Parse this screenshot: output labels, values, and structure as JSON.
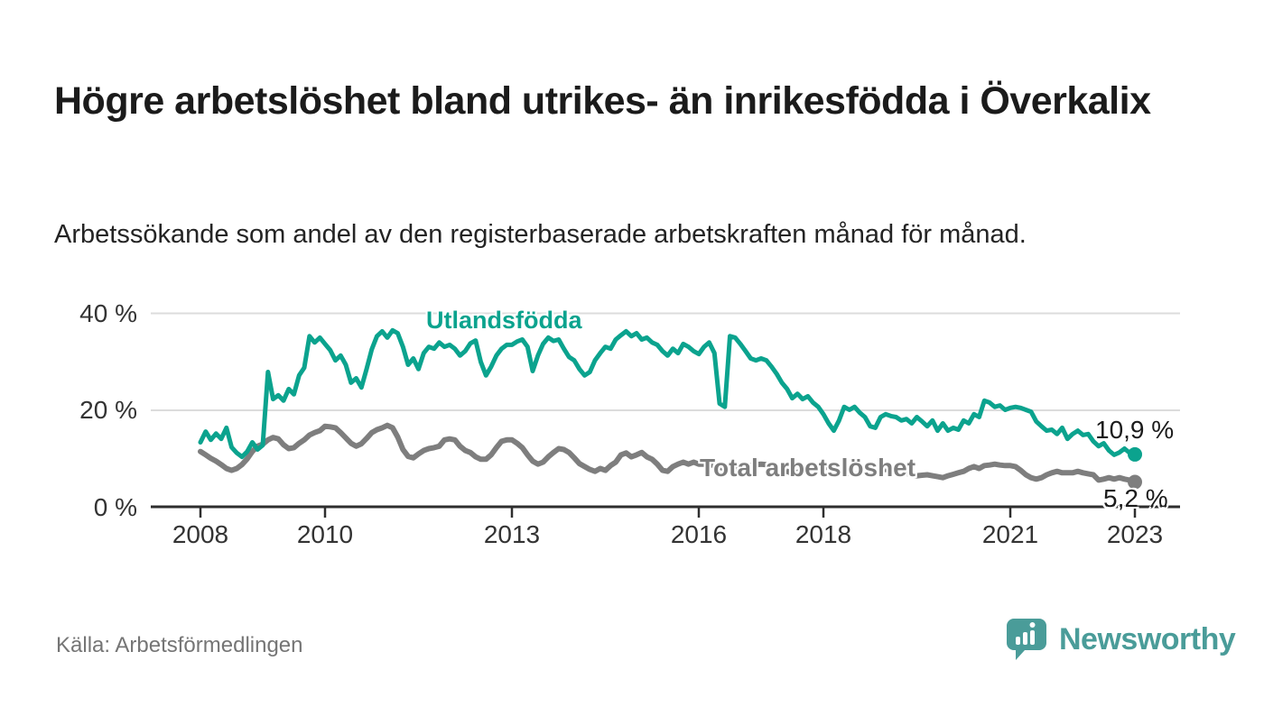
{
  "header": {
    "title": "Högre arbetslöshet bland utrikes- än inrikesfödda i Överkalix",
    "subtitle": "Arbetssökande som andel av den registerbaserade arbetskraften månad för månad."
  },
  "chart_data": {
    "type": "line",
    "title": "Högre arbetslöshet bland utrikes- än inrikesfödda i Överkalix",
    "subtitle": "Arbetssökande som andel av den registerbaserade arbetskraften månad för månad.",
    "frequency": "monthly",
    "x_start": "2008-01",
    "x_end": "2023-01",
    "ylim": [
      0,
      42
    ],
    "yticks": [
      0,
      20,
      40
    ],
    "ytick_labels": [
      "0 %",
      "20 %",
      "40 %"
    ],
    "xticks": [
      2008,
      2010,
      2013,
      2016,
      2018,
      2021,
      2023
    ],
    "xtick_labels": [
      "2008",
      "2010",
      "2013",
      "2016",
      "2018",
      "2021",
      "2023"
    ],
    "grid": "horizontal",
    "legend_position": "inline-labels",
    "series": [
      {
        "name": "Utlandsfödda",
        "color": "#0ba38e",
        "end_label": "10,9 %",
        "end_value": 10.9,
        "values": [
          13.4,
          15.6,
          13.9,
          15.2,
          14.1,
          16.4,
          12.4,
          11.2,
          10.4,
          11.5,
          13.4,
          11.9,
          12.8,
          27.9,
          22.3,
          23.1,
          22.0,
          24.4,
          23.3,
          27.2,
          28.8,
          35.3,
          34.0,
          35.0,
          33.7,
          32.4,
          30.3,
          31.3,
          29.4,
          25.7,
          26.6,
          24.7,
          28.5,
          32.6,
          35.3,
          36.3,
          35.0,
          36.5,
          35.9,
          33.1,
          29.4,
          30.7,
          28.5,
          31.8,
          33.1,
          32.7,
          34.0,
          33.1,
          33.5,
          32.7,
          31.3,
          32.2,
          33.8,
          34.4,
          30.0,
          27.2,
          29.0,
          31.3,
          32.7,
          33.5,
          33.5,
          34.2,
          34.6,
          33.1,
          28.1,
          31.3,
          33.7,
          35.0,
          34.3,
          34.6,
          32.7,
          31.0,
          30.3,
          28.5,
          27.2,
          27.9,
          30.3,
          31.8,
          33.1,
          32.7,
          34.6,
          35.5,
          36.3,
          35.3,
          35.9,
          34.6,
          35.0,
          34.0,
          33.5,
          32.2,
          31.3,
          32.7,
          31.8,
          33.7,
          33.1,
          32.2,
          31.6,
          33.1,
          34.0,
          31.8,
          21.4,
          20.7,
          35.3,
          35.0,
          33.7,
          32.2,
          30.7,
          30.3,
          30.7,
          30.3,
          29.0,
          27.5,
          25.7,
          24.4,
          22.5,
          23.4,
          22.3,
          22.9,
          21.6,
          20.7,
          19.2,
          17.3,
          15.8,
          17.9,
          20.7,
          20.1,
          20.7,
          19.5,
          18.6,
          16.7,
          16.4,
          18.6,
          19.2,
          18.8,
          18.6,
          17.9,
          18.2,
          17.3,
          18.6,
          17.7,
          16.7,
          17.9,
          15.8,
          17.3,
          15.8,
          16.4,
          16.0,
          17.9,
          17.3,
          19.2,
          18.6,
          22.0,
          21.6,
          20.7,
          21.0,
          20.1,
          20.5,
          20.7,
          20.5,
          20.1,
          19.7,
          17.7,
          16.7,
          15.8,
          16.0,
          15.1,
          16.4,
          14.1,
          15.1,
          15.8,
          14.9,
          15.1,
          13.6,
          12.6,
          13.2,
          11.7,
          10.8,
          11.3,
          12.1,
          11.2,
          10.9
        ]
      },
      {
        "name": "Total arbetslöshet",
        "color": "#7e7e7e",
        "end_label": "5,2 %",
        "end_value": 5.2,
        "values": [
          11.5,
          10.8,
          10.1,
          9.5,
          8.8,
          8.0,
          7.6,
          8.0,
          8.8,
          10.0,
          11.5,
          12.6,
          13.0,
          13.9,
          14.4,
          14.1,
          12.9,
          12.1,
          12.3,
          13.2,
          13.9,
          14.9,
          15.4,
          15.8,
          16.7,
          16.6,
          16.4,
          15.4,
          14.3,
          13.2,
          12.6,
          13.1,
          14.2,
          15.4,
          16.0,
          16.4,
          16.9,
          16.4,
          14.5,
          11.9,
          10.5,
          10.2,
          11.0,
          11.7,
          12.1,
          12.3,
          12.6,
          13.9,
          14.1,
          13.9,
          12.6,
          11.7,
          11.3,
          10.4,
          9.9,
          9.9,
          10.8,
          12.3,
          13.6,
          13.9,
          13.9,
          13.2,
          12.3,
          10.8,
          9.5,
          8.9,
          9.3,
          10.4,
          11.3,
          12.1,
          11.9,
          11.3,
          10.2,
          9.0,
          8.4,
          7.8,
          7.4,
          8.0,
          7.6,
          8.6,
          9.3,
          10.8,
          11.2,
          10.4,
          10.8,
          11.3,
          10.4,
          9.9,
          8.9,
          7.6,
          7.4,
          8.4,
          8.9,
          9.3,
          8.9,
          9.3,
          8.9,
          8.9,
          8.6,
          8.9,
          8.4,
          7.8,
          7.4,
          7.6,
          8.0,
          8.4,
          8.6,
          8.8,
          8.9,
          8.8,
          8.6,
          8.2,
          7.8,
          7.4,
          7.0,
          7.2,
          7.5,
          7.8,
          8.0,
          8.2,
          8.3,
          8.2,
          8.0,
          7.7,
          7.4,
          7.0,
          6.8,
          7.0,
          7.2,
          7.4,
          7.6,
          7.8,
          7.8,
          7.7,
          7.5,
          7.2,
          7.0,
          6.7,
          6.5,
          6.6,
          6.7,
          6.5,
          6.3,
          6.1,
          6.5,
          6.8,
          7.1,
          7.4,
          8.0,
          8.4,
          8.0,
          8.6,
          8.7,
          8.9,
          8.7,
          8.6,
          8.6,
          8.4,
          7.6,
          6.7,
          6.1,
          5.8,
          6.1,
          6.7,
          7.1,
          7.4,
          7.1,
          7.1,
          7.1,
          7.4,
          7.1,
          6.9,
          6.7,
          5.6,
          5.8,
          6.1,
          5.8,
          6.1,
          5.8,
          5.6,
          5.2
        ]
      }
    ]
  },
  "footer": {
    "source": "Källa: Arbetsförmedlingen",
    "brand": "Newsworthy"
  },
  "colors": {
    "accent_teal": "#0ba38e",
    "series_gray": "#7e7e7e",
    "logo_teal": "#4a9c99",
    "title_text": "#1b1b1b",
    "axis_text": "#333333",
    "gridline": "#dcdcdc",
    "axis_line": "#2e2e2e",
    "source_text": "#757575"
  }
}
